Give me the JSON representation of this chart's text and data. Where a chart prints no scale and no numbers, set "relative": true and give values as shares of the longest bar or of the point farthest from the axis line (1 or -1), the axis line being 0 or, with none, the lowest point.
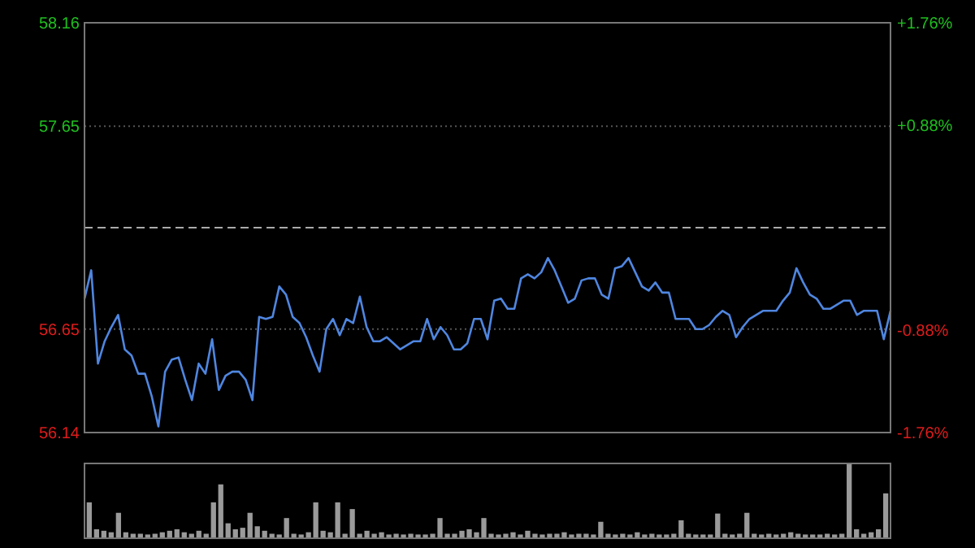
{
  "chart_data": [
    {
      "type": "line",
      "categories": [
        null,
        null,
        null,
        null,
        null,
        null,
        null,
        null,
        null,
        null,
        null,
        null,
        null,
        null,
        null,
        null,
        null,
        null,
        null,
        null,
        null,
        null,
        null,
        null,
        null,
        null,
        null,
        null,
        null,
        null,
        null,
        null,
        null,
        null,
        null,
        null,
        null,
        null,
        null,
        null,
        null,
        null,
        null,
        null,
        null,
        null,
        null,
        null,
        null,
        null,
        null,
        null,
        null,
        null,
        null,
        null,
        null,
        null,
        null,
        null,
        null,
        null,
        null,
        null,
        null,
        null,
        null,
        null,
        null,
        null,
        null,
        null,
        null,
        null,
        null,
        null,
        null,
        null,
        null,
        null,
        null,
        null,
        null,
        null,
        null,
        null,
        null,
        null,
        null,
        null,
        null,
        null,
        null,
        null,
        null,
        null,
        null,
        null,
        null,
        null,
        null,
        null,
        null,
        null,
        null,
        null,
        null,
        null,
        null,
        null,
        null,
        null,
        null,
        null,
        null,
        null,
        null,
        null,
        null,
        null,
        null
      ],
      "series": [
        {
          "color": "#4f86e0",
          "values": [
            56.8,
            56.94,
            56.48,
            56.59,
            56.66,
            56.72,
            56.55,
            56.52,
            56.43,
            56.43,
            56.32,
            56.17,
            56.44,
            56.5,
            56.51,
            56.4,
            56.3,
            56.48,
            56.43,
            56.6,
            56.35,
            56.42,
            56.44,
            56.44,
            56.4,
            56.3,
            56.71,
            56.7,
            56.71,
            56.86,
            56.82,
            56.71,
            56.68,
            56.61,
            56.52,
            56.44,
            56.65,
            56.7,
            56.62,
            56.7,
            56.68,
            56.81,
            56.66,
            56.59,
            56.59,
            56.61,
            56.58,
            56.55,
            56.57,
            56.59,
            56.59,
            56.7,
            56.6,
            56.66,
            56.62,
            56.55,
            56.55,
            56.58,
            56.7,
            56.7,
            56.6,
            56.79,
            56.8,
            56.75,
            56.75,
            56.9,
            56.92,
            56.9,
            56.93,
            57.0,
            56.94,
            56.86,
            56.78,
            56.8,
            56.89,
            56.9,
            56.9,
            56.82,
            56.8,
            56.95,
            56.96,
            57.0,
            56.93,
            56.86,
            56.84,
            56.88,
            56.83,
            56.83,
            56.7,
            56.7,
            56.7,
            56.65,
            56.65,
            56.67,
            56.71,
            56.74,
            56.72,
            56.61,
            56.66,
            56.7,
            56.72,
            56.74,
            56.74,
            56.74,
            56.79,
            56.83,
            56.95,
            56.88,
            56.82,
            56.8,
            56.75,
            56.75,
            56.77,
            56.79,
            56.79,
            56.72,
            56.74,
            56.74,
            56.74,
            56.6,
            56.74
          ]
        }
      ],
      "ylim": [
        56.14,
        58.16
      ],
      "yticks": [
        56.14,
        56.65,
        57.65,
        58.16
      ],
      "y2lim": [
        -1.76,
        1.76
      ],
      "y2ticks": [
        {
          "value": -1.76,
          "label": "-1.76%"
        },
        {
          "value": -0.88,
          "label": "-0.88%"
        },
        {
          "value": 0.88,
          "label": "+0.88%"
        },
        {
          "value": 1.76,
          "label": "+1.76%"
        }
      ],
      "ref_lines": [
        {
          "axis": "y",
          "value": 57.15,
          "color": "#aaaaaa",
          "line_style": "dashed"
        }
      ],
      "grid": "y",
      "tick_labels": "y"
    },
    {
      "type": "bar",
      "relative": true,
      "color": "#9a9a9a",
      "categories": [
        null,
        null,
        null,
        null,
        null,
        null,
        null,
        null,
        null,
        null,
        null,
        null,
        null,
        null,
        null,
        null,
        null,
        null,
        null,
        null,
        null,
        null,
        null,
        null,
        null,
        null,
        null,
        null,
        null,
        null,
        null,
        null,
        null,
        null,
        null,
        null,
        null,
        null,
        null,
        null,
        null,
        null,
        null,
        null,
        null,
        null,
        null,
        null,
        null,
        null,
        null,
        null,
        null,
        null,
        null,
        null,
        null,
        null,
        null,
        null,
        null,
        null,
        null,
        null,
        null,
        null,
        null,
        null,
        null,
        null,
        null,
        null,
        null,
        null,
        null,
        null,
        null,
        null,
        null,
        null,
        null,
        null,
        null,
        null,
        null,
        null,
        null,
        null,
        null,
        null,
        null,
        null,
        null,
        null,
        null,
        null,
        null,
        null,
        null,
        null,
        null,
        null,
        null,
        null,
        null,
        null,
        null,
        null,
        null,
        null
      ],
      "values": [
        0.48,
        0.12,
        0.1,
        0.08,
        0.34,
        0.08,
        0.06,
        0.06,
        0.05,
        0.06,
        0.08,
        0.1,
        0.12,
        0.08,
        0.06,
        0.1,
        0.06,
        0.48,
        0.72,
        0.2,
        0.12,
        0.14,
        0.34,
        0.16,
        0.1,
        0.06,
        0.05,
        0.27,
        0.06,
        0.05,
        0.08,
        0.48,
        0.1,
        0.08,
        0.48,
        0.06,
        0.39,
        0.06,
        0.1,
        0.06,
        0.08,
        0.05,
        0.06,
        0.05,
        0.06,
        0.05,
        0.05,
        0.06,
        0.27,
        0.06,
        0.06,
        0.1,
        0.12,
        0.08,
        0.27,
        0.06,
        0.05,
        0.06,
        0.08,
        0.05,
        0.1,
        0.06,
        0.05,
        0.06,
        0.06,
        0.08,
        0.05,
        0.06,
        0.06,
        0.05,
        0.22,
        0.06,
        0.05,
        0.06,
        0.05,
        0.08,
        0.05,
        0.06,
        0.05,
        0.05,
        0.06,
        0.24,
        0.06,
        0.05,
        0.05,
        0.05,
        0.33,
        0.06,
        0.05,
        0.06,
        0.34,
        0.06,
        0.05,
        0.06,
        0.05,
        0.06,
        0.08,
        0.06,
        0.05,
        0.05,
        0.05,
        0.06,
        0.05,
        0.06,
        1,
        0.12,
        0.06,
        0.08,
        0.12,
        0.6
      ]
    }
  ]
}
